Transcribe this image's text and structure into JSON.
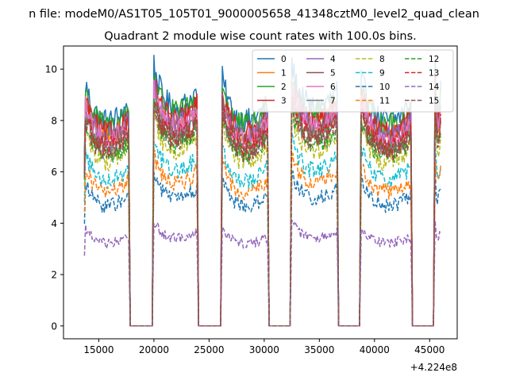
{
  "figure": {
    "suptitle": "n file: modeM0/AS1T05_105T01_9000005658_41348cztM0_level2_quad_clean"
  },
  "chart_data": {
    "type": "line",
    "title": "Quadrant 2 module wise count rates with 100.0s bins.",
    "xlabel": "",
    "ylabel": "",
    "x_offset_label": "+4.224e8",
    "xlim": [
      11800,
      47500
    ],
    "ylim": [
      -0.5,
      10.9
    ],
    "x_ticks": [
      15000,
      20000,
      25000,
      30000,
      35000,
      40000,
      45000
    ],
    "x_tick_labels": [
      "15000",
      "20000",
      "25000",
      "30000",
      "35000",
      "40000",
      "45000"
    ],
    "y_ticks": [
      0,
      2,
      4,
      6,
      8,
      10
    ],
    "y_tick_labels": [
      "0",
      "2",
      "4",
      "6",
      "8",
      "10"
    ],
    "grid": false,
    "legend_position": "top-right",
    "active_intervals": [
      [
        13700,
        17700
      ],
      [
        20000,
        23900
      ],
      [
        26200,
        30300
      ],
      [
        32500,
        36600
      ],
      [
        38800,
        43300
      ],
      [
        45500,
        46000
      ]
    ],
    "gap_value": 0,
    "series": [
      {
        "name": "0",
        "color": "#1f77b4",
        "dash": "solid",
        "mean_level": 8.7
      },
      {
        "name": "1",
        "color": "#ff7f0e",
        "dash": "solid",
        "mean_level": 8.0
      },
      {
        "name": "2",
        "color": "#2ca02c",
        "dash": "solid",
        "mean_level": 8.5
      },
      {
        "name": "3",
        "color": "#d62728",
        "dash": "solid",
        "mean_level": 8.2
      },
      {
        "name": "4",
        "color": "#9467bd",
        "dash": "solid",
        "mean_level": 8.0
      },
      {
        "name": "5",
        "color": "#8c564b",
        "dash": "solid",
        "mean_level": 7.8
      },
      {
        "name": "6",
        "color": "#e377c2",
        "dash": "solid",
        "mean_level": 7.9
      },
      {
        "name": "7",
        "color": "#7f7f7f",
        "dash": "solid",
        "mean_level": 7.5
      },
      {
        "name": "8",
        "color": "#bcbd22",
        "dash": "dashed",
        "mean_level": 7.0
      },
      {
        "name": "9",
        "color": "#17becf",
        "dash": "dashed",
        "mean_level": 6.2
      },
      {
        "name": "10",
        "color": "#1f77b4",
        "dash": "dashed",
        "mean_level": 5.1
      },
      {
        "name": "11",
        "color": "#ff7f0e",
        "dash": "dashed",
        "mean_level": 5.7
      },
      {
        "name": "12",
        "color": "#2ca02c",
        "dash": "dashed",
        "mean_level": 7.3
      },
      {
        "name": "13",
        "color": "#d62728",
        "dash": "dashed",
        "mean_level": 7.6
      },
      {
        "name": "14",
        "color": "#9467bd",
        "dash": "dashed",
        "mean_level": 3.5
      },
      {
        "name": "15",
        "color": "#8c564b",
        "dash": "dashed",
        "mean_level": 7.4
      }
    ]
  }
}
